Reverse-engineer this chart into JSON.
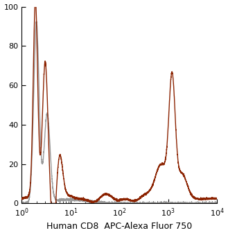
{
  "title": "",
  "xlabel": "Human CD8  APC-Alexa Fluor 750",
  "ylabel": "",
  "xlim": [
    1,
    10000
  ],
  "ylim": [
    0,
    100
  ],
  "yticks": [
    0,
    20,
    40,
    60,
    80,
    100
  ],
  "gray_color": "#999999",
  "red_color": "#8B2200",
  "background_color": "#ffffff",
  "line_width": 1.0,
  "xlabel_fontsize": 9,
  "ytick_fontsize": 8,
  "xtick_fontsize": 8
}
